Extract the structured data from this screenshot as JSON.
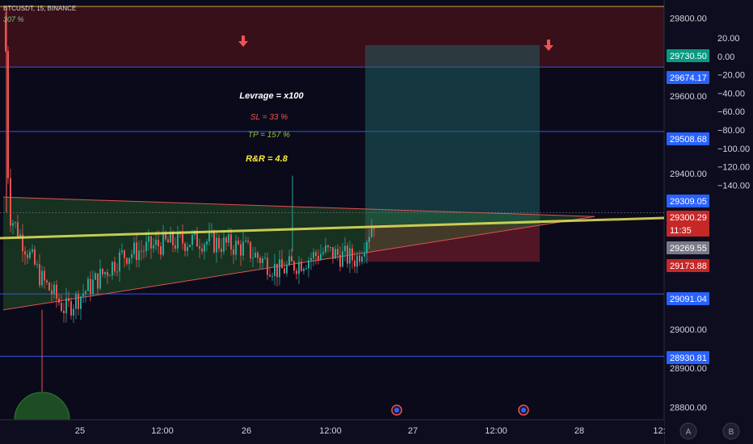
{
  "header": {
    "symbol": "BTCUSDT, 15, BINANCE",
    "indicator_value": "307 %"
  },
  "annotations": {
    "leverage": "Levrage = x100",
    "sl": "SL = 33 %",
    "tp": "TP = 157 %",
    "rr": "R&R = 4.8"
  },
  "colors": {
    "background": "#0b0a1a",
    "zone_red": "#8b1e1e",
    "zone_green": "#2e7d32",
    "wedge_line": "#e05252",
    "trend_line": "#e6e65a",
    "horizontal_line": "#3d5afe",
    "candle_up": "#26a69a",
    "candle_down": "#ef5350",
    "sl_text": "#ef5350",
    "tp_text": "#8bc34a",
    "rr_text": "#ffeb3b",
    "label_blue": "#2962ff",
    "label_green": "#089981",
    "label_red": "#c62828",
    "label_gray": "#787b86"
  },
  "chart_data": {
    "type": "candlestick",
    "interval": "15",
    "price_axis": {
      "min": 28780,
      "max": 29830,
      "ticks": [
        28800,
        28900,
        29000,
        29400,
        29600,
        29800
      ],
      "tick_labels": [
        "28800.00",
        "28900.00",
        "29000.00",
        "29400.00",
        "29600.00",
        "29800.00"
      ]
    },
    "indicator_axis": {
      "ticks": [
        20,
        0,
        -20,
        -40,
        -60,
        -80,
        -100,
        -120,
        -140
      ],
      "tick_labels": [
        "20.00",
        "0.00",
        "−20.00",
        "−40.00",
        "−60.00",
        "−80.00",
        "−100.00",
        "−120.00",
        "−140.00"
      ]
    },
    "time_axis": {
      "tick_labels": [
        "25",
        "12:00",
        "26",
        "12:00",
        "27",
        "12:00",
        "28",
        "12:"
      ]
    },
    "price_labels": [
      {
        "value": "29730.50",
        "kind": "green"
      },
      {
        "value": "29674.17",
        "kind": "blue"
      },
      {
        "value": "29508.68",
        "kind": "blue"
      },
      {
        "value": "29309.05",
        "kind": "blue"
      },
      {
        "value": "29300.29",
        "kind": "red"
      },
      {
        "value": "11:35",
        "kind": "red"
      },
      {
        "value": "29269.55",
        "kind": "gray"
      },
      {
        "value": "29173.88",
        "kind": "red"
      },
      {
        "value": "29091.04",
        "kind": "blue"
      },
      {
        "value": "28930.81",
        "kind": "blue"
      }
    ],
    "horizontal_levels": [
      29674.17,
      29508.68,
      29091.04,
      28930.81
    ],
    "position": {
      "entry": 29269.55,
      "take_profit": 29730.5,
      "stop_loss": 29173.88
    },
    "last_price": 29300.29,
    "countdown": "11:35",
    "wedge": {
      "upper_left": 29340,
      "lower_left": 29050,
      "apex": 29290
    },
    "axis_buttons": [
      "A",
      "B"
    ]
  }
}
